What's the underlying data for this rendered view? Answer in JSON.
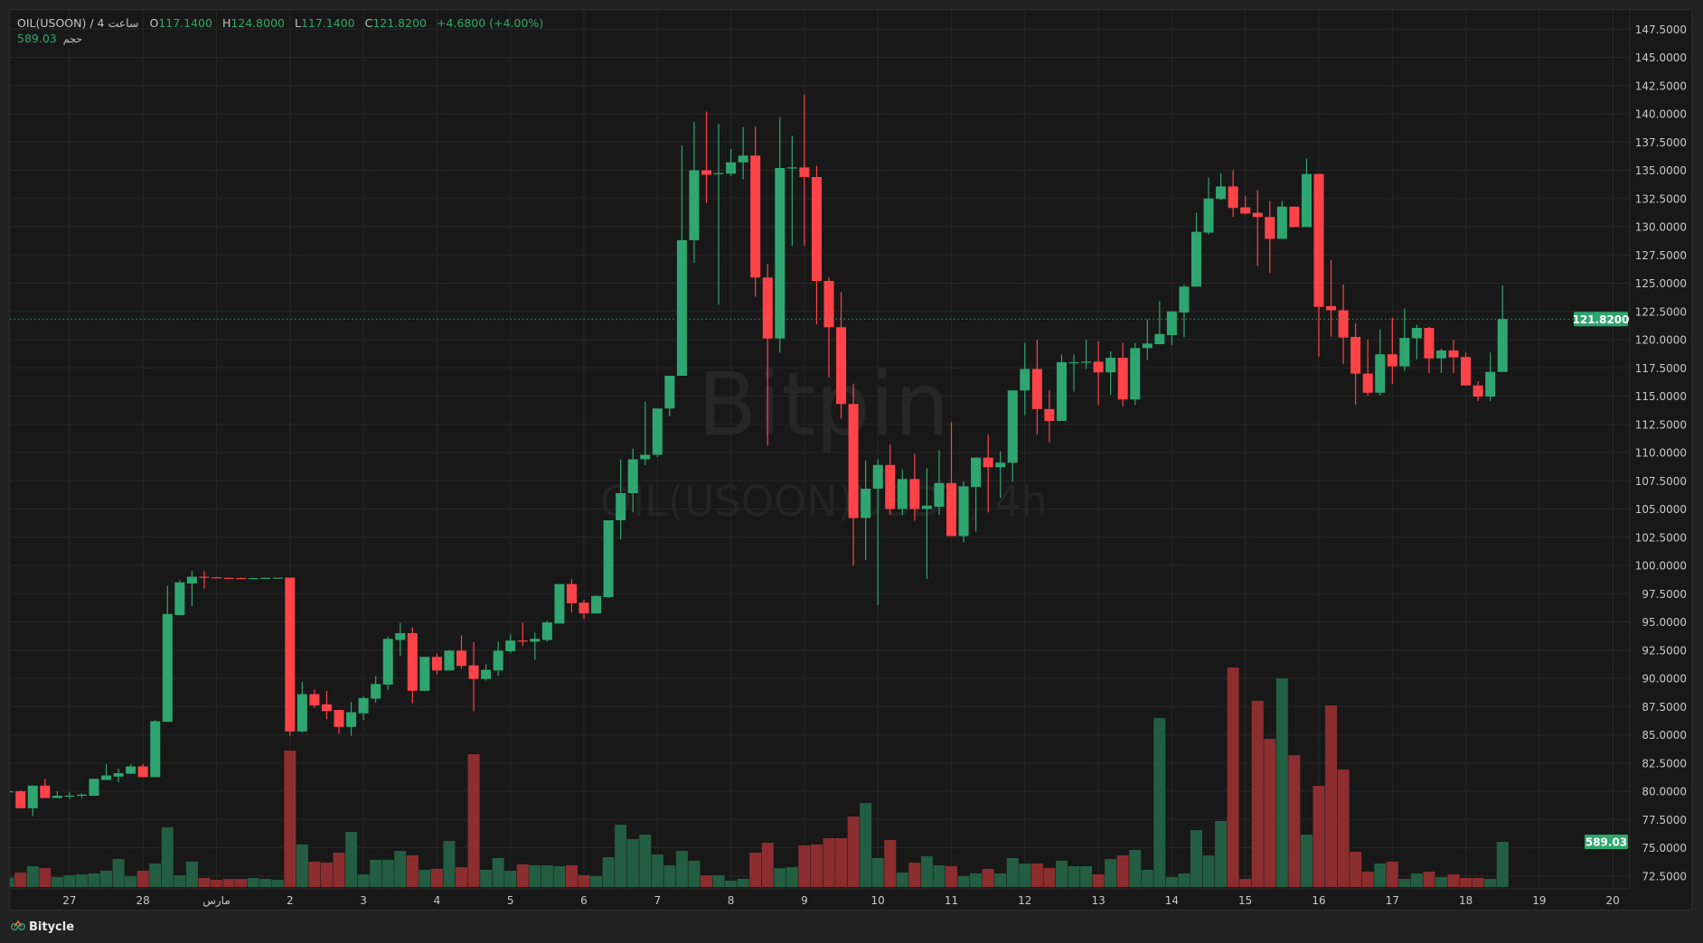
{
  "legend": {
    "symbol": "OIL(USOON) / 4 ساعت",
    "open_label": "O",
    "open": "117.1400",
    "high_label": "H",
    "high": "124.8000",
    "low_label": "L",
    "low": "117.1400",
    "close_label": "C",
    "close": "121.8200",
    "change": "+4.6800 (+4.00%)",
    "volume_label": "حجم",
    "volume": "589.03"
  },
  "watermark": {
    "brand": "Bitpin",
    "pair": "OIL(USOON)USDT, 4h"
  },
  "footer": {
    "brand": "Bitycle",
    "icon": "bitycle-logo-icon"
  },
  "colors": {
    "background": "#181818",
    "grid": "#262626",
    "up": "#2fa66f",
    "down": "#ff4349",
    "volume_up": "#235e42",
    "volume_down": "#8c2e30",
    "price_line": "#2fa66f",
    "axis_text": "#c8c8c8"
  },
  "chart_data": {
    "type": "candlestick",
    "interval": "4h",
    "current_price": "121.8200",
    "current_price_value": 121.82,
    "current_volume": "589.03",
    "current_volume_value": 589.03,
    "ylim": [
      71.36,
      149.2
    ],
    "grid": true,
    "y_ticks": [
      "72.5000",
      "75.0000",
      "77.5000",
      "80.0000",
      "82.5000",
      "85.0000",
      "87.5000",
      "90.0000",
      "92.5000",
      "95.0000",
      "97.5000",
      "100.0000",
      "102.5000",
      "105.0000",
      "107.5000",
      "110.0000",
      "112.5000",
      "115.0000",
      "117.5000",
      "120.0000",
      "122.5000",
      "125.0000",
      "127.5000",
      "130.0000",
      "132.5000",
      "135.0000",
      "137.5000",
      "140.0000",
      "142.5000",
      "145.0000",
      "147.5000"
    ],
    "x_ticks": [
      {
        "label": "27",
        "index": 5
      },
      {
        "label": "28",
        "index": 11
      },
      {
        "label": "مارس",
        "index": 17
      },
      {
        "label": "2",
        "index": 23
      },
      {
        "label": "3",
        "index": 29
      },
      {
        "label": "4",
        "index": 35
      },
      {
        "label": "5",
        "index": 41
      },
      {
        "label": "6",
        "index": 47
      },
      {
        "label": "7",
        "index": 53
      },
      {
        "label": "8",
        "index": 59
      },
      {
        "label": "9",
        "index": 65
      },
      {
        "label": "10",
        "index": 71
      },
      {
        "label": "11",
        "index": 77
      },
      {
        "label": "12",
        "index": 83
      },
      {
        "label": "13",
        "index": 89
      },
      {
        "label": "14",
        "index": 95
      },
      {
        "label": "15",
        "index": 101
      },
      {
        "label": "16",
        "index": 107
      },
      {
        "label": "17",
        "index": 113
      },
      {
        "label": "18",
        "index": 119
      },
      {
        "label": "19",
        "index": 125
      },
      {
        "label": "20",
        "index": 131
      }
    ],
    "columns": [
      "open",
      "high",
      "low",
      "close",
      "volume"
    ],
    "candles": [
      [
        79.9,
        80.1,
        79.8,
        80.0,
        122
      ],
      [
        80.0,
        80.1,
        78.5,
        78.5,
        189
      ],
      [
        78.5,
        80.5,
        77.8,
        80.5,
        271
      ],
      [
        80.5,
        81.1,
        79.4,
        79.4,
        248
      ],
      [
        79.4,
        80.0,
        79.4,
        79.6,
        130
      ],
      [
        79.6,
        79.9,
        79.3,
        79.62,
        153
      ],
      [
        79.6,
        79.8,
        79.4,
        79.7,
        165
      ],
      [
        79.6,
        81.1,
        79.6,
        81.1,
        177
      ],
      [
        81.0,
        82.4,
        81.0,
        81.4,
        212
      ],
      [
        81.3,
        82.0,
        80.8,
        81.6,
        365
      ],
      [
        81.55,
        82.4,
        81.55,
        82.2,
        141
      ],
      [
        82.2,
        82.4,
        81.25,
        81.25,
        212
      ],
      [
        81.25,
        86.3,
        81.25,
        86.2,
        306
      ],
      [
        86.15,
        98.2,
        86.15,
        95.7,
        778
      ],
      [
        95.6,
        98.7,
        95.6,
        98.5,
        153
      ],
      [
        98.4,
        99.5,
        96.4,
        99.0,
        330
      ],
      [
        99.0,
        99.5,
        97.95,
        98.95,
        118
      ],
      [
        98.95,
        98.95,
        98.9,
        98.9,
        94
      ],
      [
        98.9,
        98.9,
        98.88,
        98.88,
        106
      ],
      [
        98.88,
        98.92,
        98.85,
        98.85,
        106
      ],
      [
        98.85,
        98.9,
        98.85,
        98.88,
        118
      ],
      [
        98.88,
        98.92,
        98.88,
        98.9,
        106
      ],
      [
        98.9,
        98.92,
        98.9,
        98.92,
        94
      ],
      [
        98.92,
        98.92,
        84.9,
        85.3,
        1779
      ],
      [
        85.3,
        89.7,
        85.2,
        88.6,
        554
      ],
      [
        88.6,
        89.0,
        87.4,
        87.6,
        330
      ],
      [
        87.7,
        88.9,
        86.4,
        87.1,
        318
      ],
      [
        87.2,
        87.2,
        85.1,
        85.7,
        448
      ],
      [
        85.7,
        87.9,
        84.9,
        87.0,
        719
      ],
      [
        86.9,
        88.4,
        86.3,
        88.25,
        165
      ],
      [
        88.2,
        90.2,
        87.85,
        89.5,
        354
      ],
      [
        89.45,
        93.7,
        89.0,
        93.5,
        354
      ],
      [
        93.4,
        94.9,
        92.0,
        94.0,
        471
      ],
      [
        94.0,
        94.5,
        87.8,
        88.9,
        412
      ],
      [
        88.9,
        91.9,
        88.9,
        91.9,
        224
      ],
      [
        91.9,
        92.2,
        90.35,
        90.7,
        236
      ],
      [
        90.7,
        92.5,
        90.7,
        92.45,
        601
      ],
      [
        92.45,
        93.8,
        90.85,
        91.1,
        259
      ],
      [
        91.15,
        93.2,
        87.1,
        89.95,
        1732
      ],
      [
        89.95,
        91.25,
        89.8,
        90.75,
        224
      ],
      [
        90.7,
        93.25,
        90.2,
        92.45,
        377
      ],
      [
        92.4,
        93.9,
        92.25,
        93.35,
        212
      ],
      [
        93.35,
        94.95,
        92.85,
        93.3,
        295
      ],
      [
        93.25,
        94.05,
        91.65,
        93.5,
        283
      ],
      [
        93.4,
        95.1,
        93.25,
        94.95,
        283
      ],
      [
        94.85,
        98.35,
        94.85,
        98.35,
        271
      ],
      [
        98.35,
        98.8,
        95.85,
        96.65,
        283
      ],
      [
        96.7,
        96.95,
        95.25,
        95.75,
        153
      ],
      [
        95.75,
        97.35,
        95.75,
        97.3,
        141
      ],
      [
        97.2,
        104.0,
        97.1,
        104.0,
        389
      ],
      [
        104.0,
        109.4,
        102.3,
        106.4,
        813
      ],
      [
        106.4,
        110.35,
        104.7,
        109.4,
        624
      ],
      [
        109.4,
        114.5,
        108.9,
        109.8,
        683
      ],
      [
        109.8,
        113.9,
        109.6,
        113.9,
        424
      ],
      [
        113.9,
        116.8,
        113.2,
        116.8,
        283
      ],
      [
        116.8,
        137.2,
        116.8,
        128.8,
        471
      ],
      [
        128.8,
        139.3,
        126.8,
        135.0,
        342
      ],
      [
        135.0,
        140.2,
        132.1,
        134.6,
        153
      ],
      [
        134.7,
        139.1,
        123.1,
        134.75,
        153
      ],
      [
        134.7,
        136.9,
        134.5,
        135.7,
        82
      ],
      [
        135.7,
        138.85,
        134.2,
        136.3,
        106
      ],
      [
        136.3,
        138.85,
        123.8,
        125.5,
        448
      ],
      [
        125.5,
        126.7,
        110.6,
        120.1,
        577
      ],
      [
        120.1,
        139.7,
        118.85,
        135.2,
        247
      ],
      [
        135.2,
        138.05,
        128.3,
        135.25,
        259
      ],
      [
        135.25,
        141.7,
        128.3,
        134.4,
        542
      ],
      [
        134.4,
        135.4,
        121.35,
        125.2,
        554
      ],
      [
        125.2,
        125.5,
        116.65,
        121.1,
        636
      ],
      [
        121.1,
        124.2,
        113.0,
        114.3,
        636
      ],
      [
        114.3,
        116.1,
        100.0,
        104.2,
        919
      ],
      [
        104.2,
        109.3,
        100.5,
        106.8,
        1096
      ],
      [
        106.8,
        109.4,
        96.5,
        108.9,
        377
      ],
      [
        108.9,
        110.7,
        104.5,
        105.0,
        613
      ],
      [
        105.0,
        108.5,
        104.46,
        107.65,
        189
      ],
      [
        107.65,
        109.9,
        103.97,
        105.0,
        318
      ],
      [
        105.0,
        108.6,
        98.8,
        105.3,
        401
      ],
      [
        105.2,
        110.2,
        104.46,
        107.3,
        283
      ],
      [
        107.3,
        112.7,
        102.6,
        102.6,
        271
      ],
      [
        102.6,
        107.45,
        102.04,
        107.0,
        141
      ],
      [
        106.95,
        109.55,
        103.0,
        109.55,
        177
      ],
      [
        109.55,
        111.6,
        104.7,
        108.7,
        236
      ],
      [
        108.7,
        110.1,
        106.0,
        109.1,
        177
      ],
      [
        109.1,
        115.5,
        107.4,
        115.5,
        377
      ],
      [
        115.5,
        119.7,
        113.3,
        117.4,
        306
      ],
      [
        117.4,
        120.0,
        111.6,
        113.85,
        306
      ],
      [
        113.85,
        115.5,
        110.9,
        112.8,
        247
      ],
      [
        112.8,
        118.7,
        112.8,
        118.0,
        342
      ],
      [
        117.95,
        118.7,
        115.4,
        118.0,
        271
      ],
      [
        118.05,
        120.0,
        117.4,
        118.05,
        271
      ],
      [
        118.05,
        119.85,
        114.2,
        117.1,
        165
      ],
      [
        117.1,
        118.95,
        115.1,
        118.4,
        365
      ],
      [
        118.4,
        119.7,
        114.1,
        114.7,
        412
      ],
      [
        114.7,
        119.7,
        114.2,
        119.25,
        483
      ],
      [
        119.25,
        121.8,
        118.2,
        119.65,
        224
      ],
      [
        119.6,
        123.4,
        119.6,
        120.5,
        2203
      ],
      [
        120.4,
        122.5,
        119.5,
        122.5,
        130
      ],
      [
        122.4,
        124.85,
        120.24,
        124.7,
        177
      ],
      [
        124.7,
        131.23,
        124.7,
        129.55,
        742
      ],
      [
        129.48,
        134.36,
        129.33,
        132.5,
        412
      ],
      [
        132.46,
        134.76,
        132.37,
        133.57,
        860
      ],
      [
        133.57,
        135.0,
        130.86,
        131.66,
        2863
      ],
      [
        131.72,
        132.74,
        131.08,
        131.17,
        106
      ],
      [
        131.23,
        133.23,
        126.53,
        130.86,
        2427
      ],
      [
        130.86,
        132.27,
        125.9,
        128.93,
        1932
      ],
      [
        128.93,
        132.27,
        128.93,
        131.78,
        2721
      ],
      [
        131.78,
        131.78,
        129.97,
        129.97,
        1720
      ],
      [
        129.97,
        136.05,
        129.97,
        134.67,
        683
      ],
      [
        134.67,
        134.67,
        118.5,
        122.9,
        1319
      ],
      [
        122.97,
        127.06,
        120.27,
        122.6,
        2368
      ],
      [
        122.6,
        124.88,
        117.85,
        120.18,
        1532
      ],
      [
        120.24,
        121.44,
        114.25,
        116.99,
        459
      ],
      [
        116.99,
        119.99,
        115.05,
        115.3,
        200
      ],
      [
        115.3,
        120.9,
        115.05,
        118.7,
        306
      ],
      [
        118.7,
        121.93,
        116.1,
        117.63,
        330
      ],
      [
        117.63,
        122.73,
        117.23,
        120.15,
        106
      ],
      [
        120.12,
        121.3,
        118.24,
        121.04,
        177
      ],
      [
        121.04,
        121.13,
        117.05,
        118.34,
        200
      ],
      [
        118.34,
        119.2,
        117.05,
        119.04,
        130
      ],
      [
        119.04,
        119.99,
        117.05,
        118.43,
        165
      ],
      [
        118.46,
        118.86,
        115.94,
        115.94,
        118
      ],
      [
        115.94,
        116.31,
        114.56,
        114.96,
        118
      ],
      [
        114.96,
        118.86,
        114.56,
        117.14,
        106
      ],
      [
        117.14,
        124.8,
        117.14,
        121.82,
        589.03
      ]
    ]
  }
}
